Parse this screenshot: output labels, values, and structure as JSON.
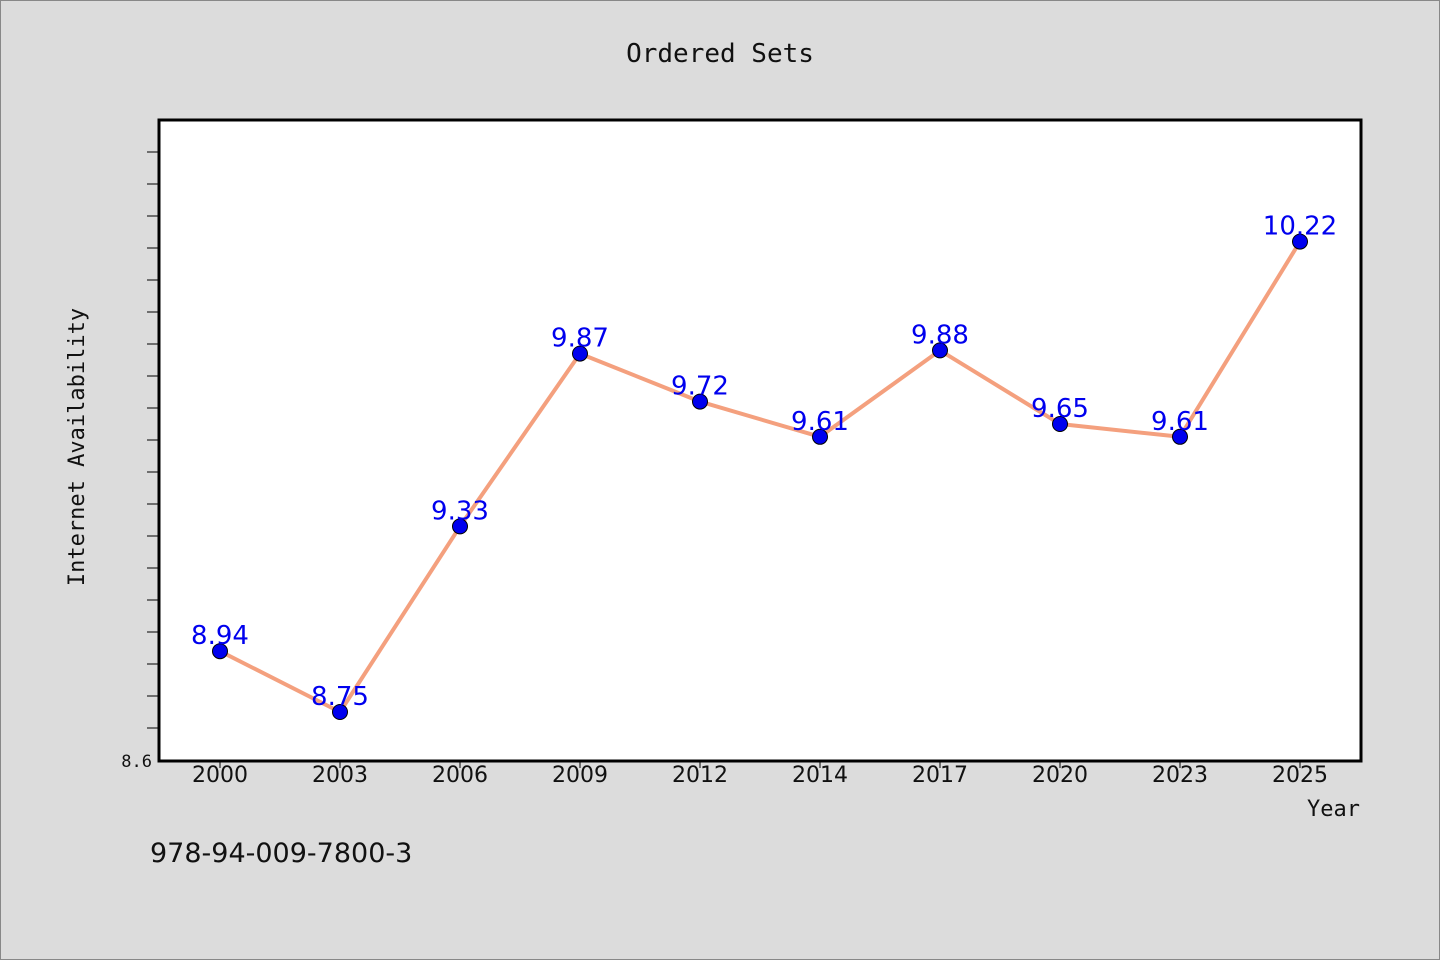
{
  "chart_data": {
    "type": "line",
    "title": "Ordered Sets",
    "xlabel": "Year",
    "ylabel": "Internet Availability",
    "categories": [
      "2000",
      "2003",
      "2006",
      "2009",
      "2012",
      "2014",
      "2017",
      "2020",
      "2023",
      "2025"
    ],
    "series": [
      {
        "values": [
          8.94,
          8.75,
          9.33,
          9.87,
          9.72,
          9.61,
          9.88,
          9.65,
          9.61,
          10.22
        ]
      }
    ],
    "data_labels": [
      "8.94",
      "8.75",
      "9.33",
      "9.87",
      "9.72",
      "9.61",
      "9.88",
      "9.65",
      "9.61",
      "10.22"
    ],
    "ylim": [
      8.6,
      10.6
    ],
    "y_tick_labels": [
      "8.6"
    ],
    "grid": false,
    "legend": "none",
    "colors": {
      "background": "#dcdcdc",
      "plot_background": "#ffffff",
      "line": "#f4a07e",
      "marker": "#0000ee",
      "label": "#0000ee"
    }
  },
  "footer_text": "978-94-009-7800-3"
}
